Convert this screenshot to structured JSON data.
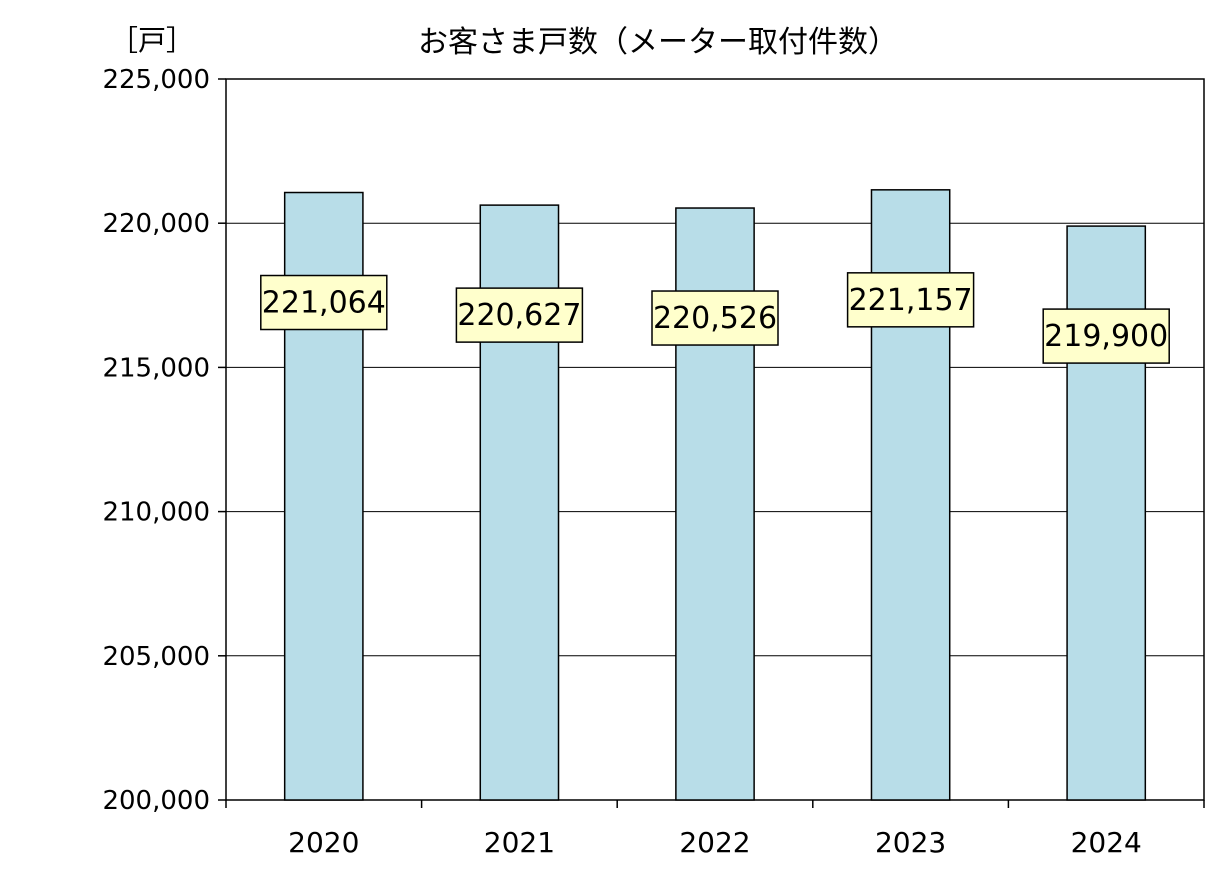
{
  "chart_data": {
    "type": "bar",
    "title": "お客さま戸数（メーター取付件数）",
    "unit_label": "［戸］",
    "categories": [
      "2020",
      "2021",
      "2022",
      "2023",
      "2024"
    ],
    "values": [
      221064,
      220627,
      220526,
      221157,
      219900
    ],
    "data_labels": [
      "221,064",
      "220,627",
      "220,526",
      "221,157",
      "219,900"
    ],
    "ylim": [
      200000,
      225000
    ],
    "yticks": [
      200000,
      205000,
      210000,
      215000,
      220000,
      225000
    ],
    "ytick_labels": [
      "200,000",
      "205,000",
      "210,000",
      "215,000",
      "220,000",
      "225,000"
    ],
    "grid": true,
    "legend": "none",
    "colors": {
      "bar_fill": "#b8dde8",
      "bar_stroke": "#000000",
      "label_fill": "#ffffcc",
      "label_stroke": "#000000",
      "grid": "#000000"
    }
  }
}
